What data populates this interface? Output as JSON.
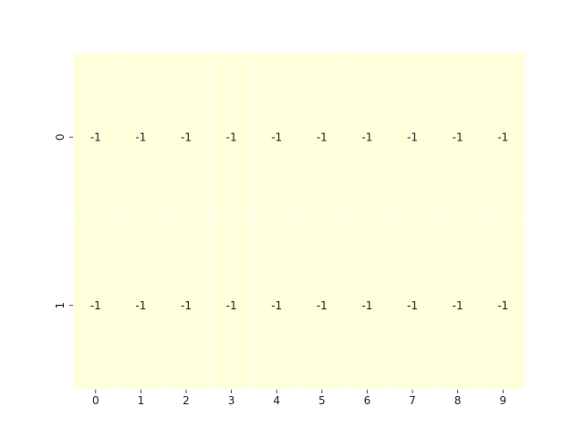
{
  "chart_data": {
    "type": "heatmap",
    "title": "",
    "xlabel": "",
    "ylabel": "",
    "x_categories": [
      "0",
      "1",
      "2",
      "3",
      "4",
      "5",
      "6",
      "7",
      "8",
      "9"
    ],
    "y_categories": [
      "0",
      "1"
    ],
    "values": [
      [
        -1,
        -1,
        -1,
        -1,
        -1,
        -1,
        -1,
        -1,
        -1,
        -1
      ],
      [
        -1,
        -1,
        -1,
        -1,
        -1,
        -1,
        -1,
        -1,
        -1,
        -1
      ]
    ],
    "annotated": true,
    "colorbar": false,
    "cell_color": "#ffffdb",
    "cell_border_color": "#ffffff",
    "text_color": "#262626"
  }
}
